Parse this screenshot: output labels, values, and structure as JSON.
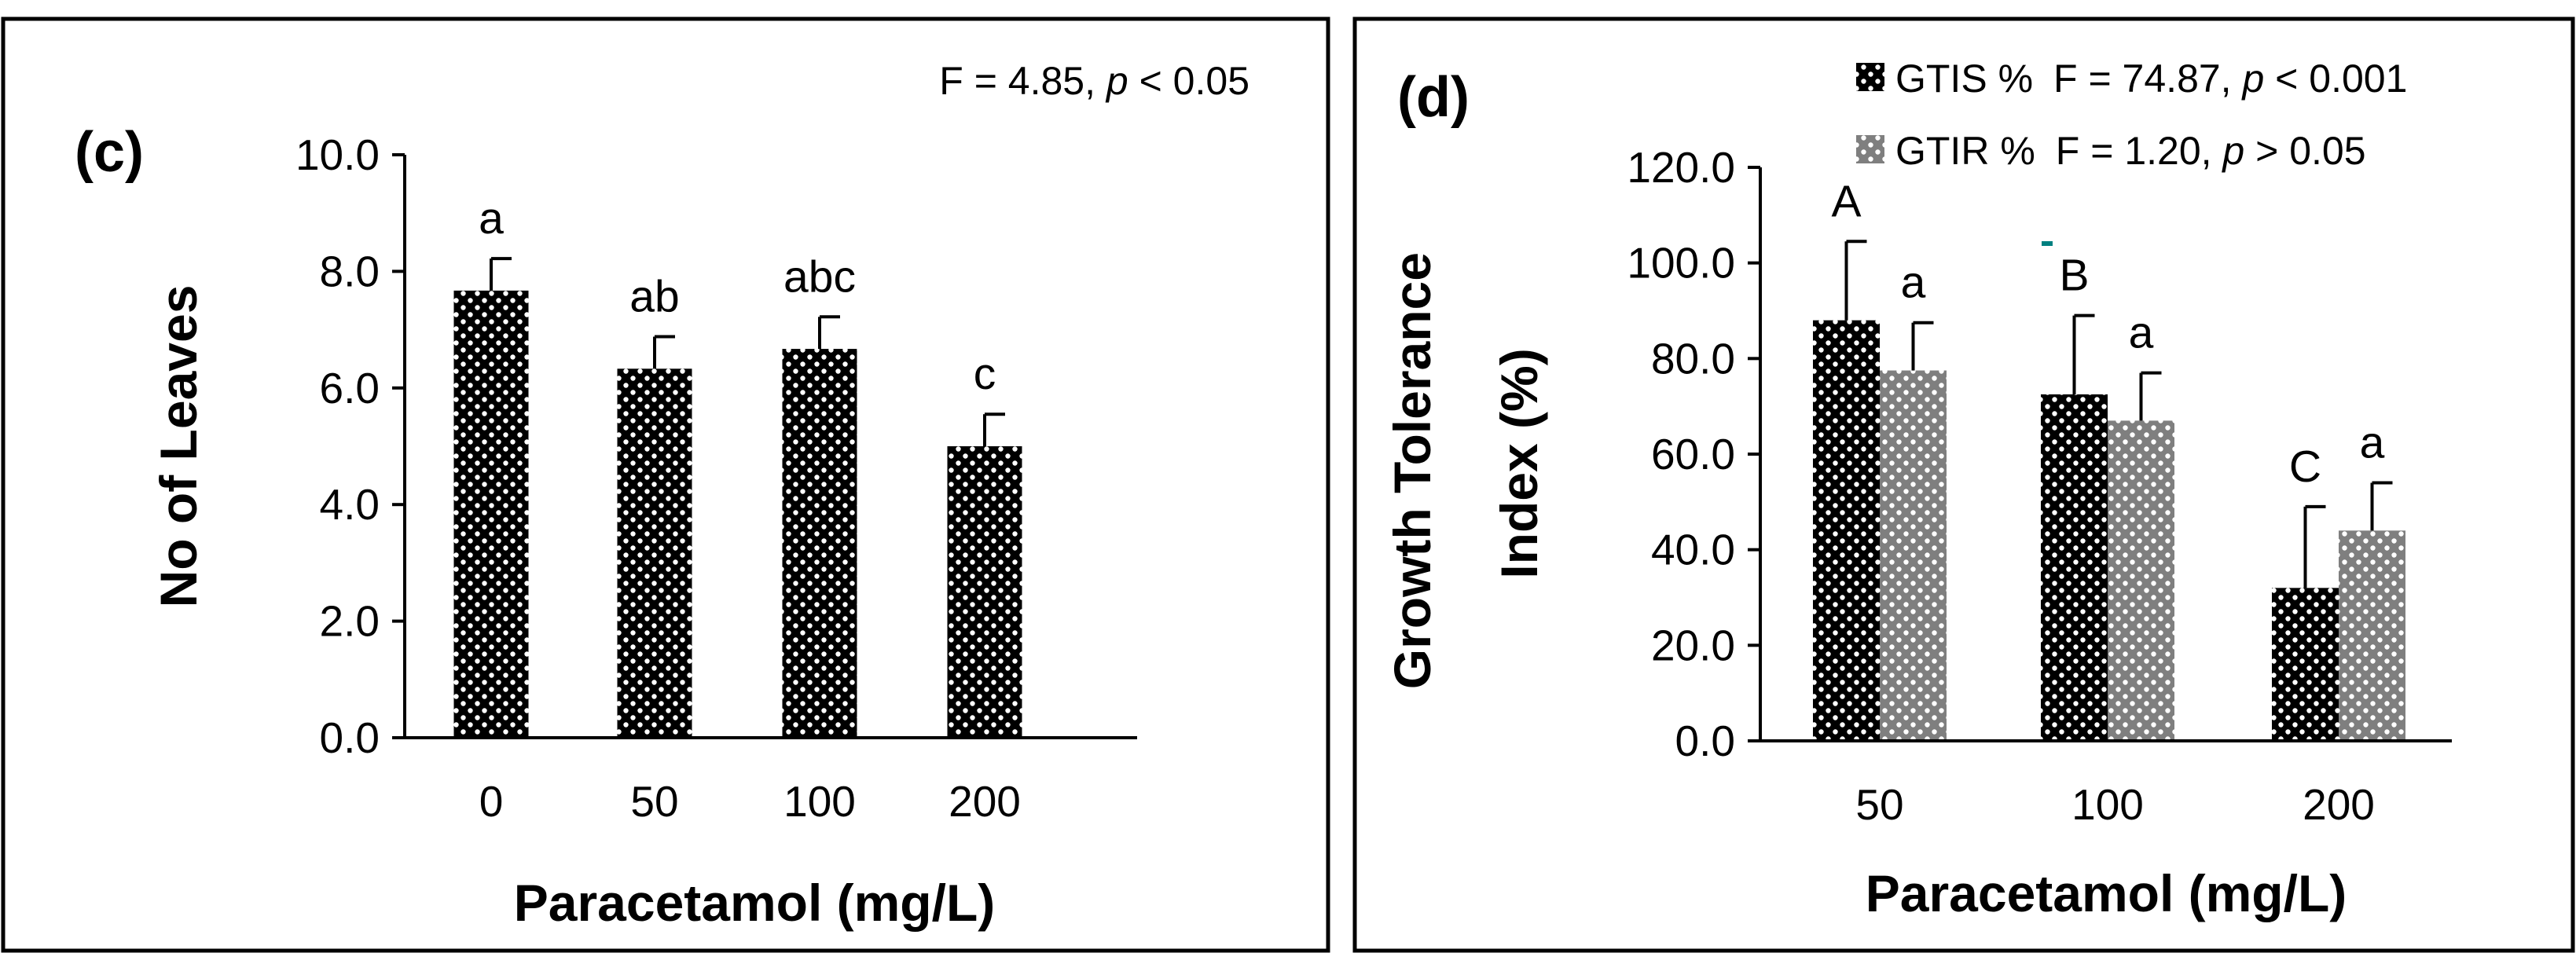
{
  "colors": {
    "dark_bar": "#000000",
    "grey_bar": "#808080",
    "dot_color": "#ffffff",
    "grid_line": "#000000",
    "accent_dash": "#008080"
  },
  "chart_data": [
    {
      "type": "bar",
      "panel_label": "(c)",
      "stat": {
        "prefix": "F =  4.85,  ",
        "p": "p",
        "suffix": " < 0.05"
      },
      "title": "",
      "xlabel": "Paracetamol (mg/L)",
      "ylabel": "No of Leaves",
      "ylim": [
        0,
        10
      ],
      "yticks": [
        "0.0",
        "2.0",
        "4.0",
        "6.0",
        "8.0",
        "10.0"
      ],
      "categories": [
        "0",
        "50",
        "100",
        "200"
      ],
      "series": [
        {
          "name": "No of Leaves",
          "pattern": "dark",
          "values": [
            7.67,
            6.33,
            6.67,
            5.0
          ],
          "errors": [
            0.55,
            0.55,
            0.55,
            0.55
          ],
          "letters": [
            "a",
            "ab",
            "abc",
            "c"
          ]
        }
      ]
    },
    {
      "type": "bar",
      "panel_label": "(d)",
      "title": "",
      "xlabel": "Paracetamol (mg/L)",
      "ylabel_lines": [
        "Growth Tolerance",
        "Index (%)"
      ],
      "ylim": [
        0,
        120
      ],
      "yticks": [
        "0.0",
        "20.0",
        "40.0",
        "60.0",
        "80.0",
        "100.0",
        "120.0"
      ],
      "categories": [
        "50",
        "100",
        "200"
      ],
      "legend_position": "top-right",
      "series": [
        {
          "name": "GTIS %",
          "pattern": "dark",
          "stat": {
            "prefix": "F = 74.87, ",
            "p": "p",
            "suffix": " < 0.001"
          },
          "values": [
            88.0,
            72.5,
            32.0
          ],
          "errors": [
            16.5,
            16.5,
            17.0
          ],
          "letters": [
            "A",
            "B",
            "C"
          ]
        },
        {
          "name": "GTIR %",
          "pattern": "grey",
          "stat": {
            "prefix": "F = 1.20, ",
            "p": "p",
            "suffix": " > 0.05"
          },
          "values": [
            77.5,
            67.0,
            44.0
          ],
          "errors": [
            10.0,
            10.0,
            10.0
          ],
          "letters": [
            "a",
            "a",
            "a"
          ]
        }
      ]
    }
  ]
}
